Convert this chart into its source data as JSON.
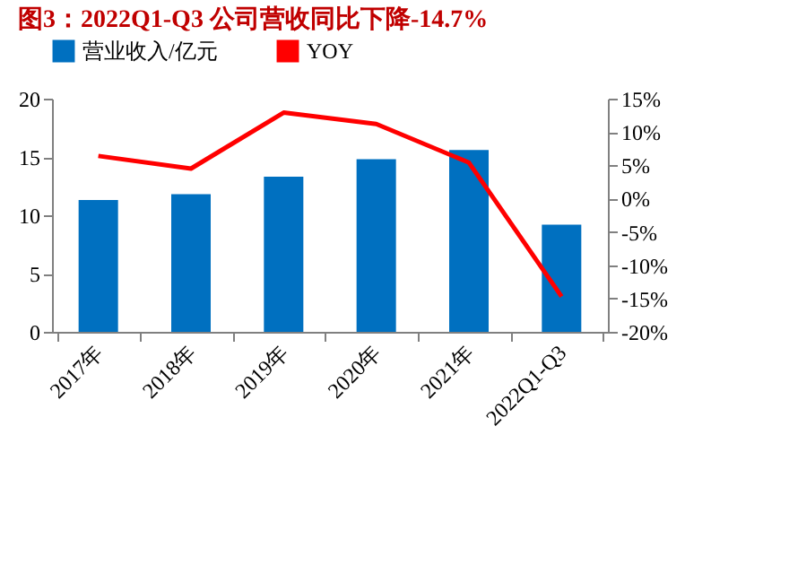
{
  "chart_data": {
    "type": "bar",
    "title": "图3：2022Q1-Q3 公司营收同比下降-14.7%",
    "categories": [
      "2017年",
      "2018年",
      "2019年",
      "2020年",
      "2021年",
      "2022Q1-Q3"
    ],
    "series": [
      {
        "name": "营业收入/亿元",
        "color": "#0070c0",
        "values": [
          11.3,
          11.8,
          13.3,
          14.8,
          15.6,
          9.2
        ]
      },
      {
        "name": "YOY",
        "type": "line",
        "axis": "y2",
        "color": "#ff0000",
        "values": [
          6.4,
          4.5,
          12.9,
          11.2,
          5.4,
          -14.7
        ]
      }
    ],
    "ylim": [
      0,
      20
    ],
    "yticks": [
      0,
      5,
      10,
      15,
      20
    ],
    "y2lim": [
      -20,
      15
    ],
    "y2ticks": [
      {
        "value": -20,
        "label": "-20%"
      },
      {
        "value": -15,
        "label": "-15%"
      },
      {
        "value": -10,
        "label": "-10%"
      },
      {
        "value": -5,
        "label": "-5%"
      },
      {
        "value": 0,
        "label": "0%"
      },
      {
        "value": 5,
        "label": "5%"
      },
      {
        "value": 10,
        "label": "10%"
      },
      {
        "value": 15,
        "label": "15%"
      }
    ],
    "legend": "top",
    "grid": false
  }
}
